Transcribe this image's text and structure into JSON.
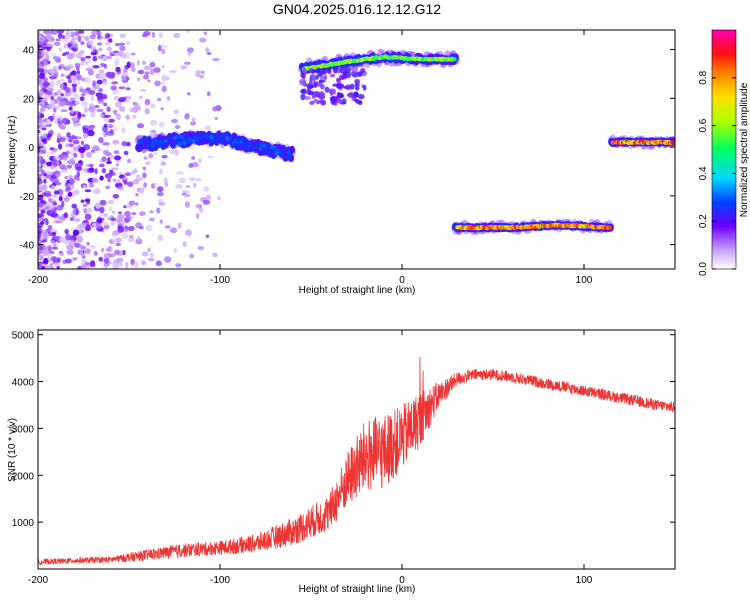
{
  "chart_data": [
    {
      "type": "heatmap",
      "title": "GN04.2025.016.12.12.G12",
      "xlabel": "Height of straight line (km)",
      "ylabel": "Frequency (Hz)",
      "xlim": [
        -200,
        150
      ],
      "ylim": [
        -50,
        48
      ],
      "x_ticks": [
        -200,
        -100,
        0,
        100
      ],
      "y_ticks": [
        -40,
        -20,
        0,
        20,
        40
      ],
      "colorbar": {
        "label": "Normalized spectral amplitude",
        "range": [
          0,
          1
        ],
        "ticks": [
          0.0,
          0.2,
          0.4,
          0.6,
          0.8
        ]
      },
      "features": [
        {
          "name": "noise-field",
          "x_range": [
            -200,
            -105
          ],
          "freq_range": [
            -50,
            48
          ],
          "amplitude": 0.12
        },
        {
          "name": "center-band",
          "x": [
            -145,
            -120,
            -100,
            -80,
            -60
          ],
          "freq": [
            1,
            3,
            4,
            0,
            -3
          ],
          "amplitude": 0.3
        },
        {
          "name": "upper-band",
          "x": [
            -55,
            -30,
            -10,
            10,
            30
          ],
          "freq": [
            32,
            35,
            37,
            36,
            36
          ],
          "amplitude": 0.65
        },
        {
          "name": "lower-band",
          "x": [
            29,
            60,
            85,
            115
          ],
          "freq": [
            -33,
            -33,
            -32,
            -33
          ],
          "amplitude": 0.9
        },
        {
          "name": "right-band",
          "x": [
            115,
            150
          ],
          "freq": [
            2,
            2
          ],
          "amplitude": 0.92
        }
      ]
    },
    {
      "type": "line",
      "xlabel": "Height of straight line (km)",
      "ylabel": "SNR (10 * v/v)",
      "xlim": [
        -200,
        150
      ],
      "ylim": [
        0,
        5100
      ],
      "x_ticks": [
        -200,
        -100,
        0,
        100
      ],
      "y_ticks": [
        1000,
        2000,
        3000,
        4000,
        5000
      ],
      "color": "#ee3333",
      "series": [
        {
          "name": "SNR",
          "x": [
            -200,
            -180,
            -160,
            -140,
            -120,
            -100,
            -80,
            -60,
            -40,
            -30,
            -20,
            -10,
            0,
            10,
            20,
            30,
            40,
            50,
            60,
            80,
            100,
            120,
            140,
            150
          ],
          "y": [
            150,
            180,
            200,
            300,
            400,
            450,
            550,
            800,
            1200,
            1900,
            2400,
            2500,
            2800,
            3200,
            3700,
            4050,
            4150,
            4150,
            4100,
            3950,
            3800,
            3650,
            3500,
            3450
          ],
          "spread": [
            60,
            60,
            70,
            120,
            150,
            150,
            200,
            300,
            400,
            600,
            800,
            800,
            700,
            600,
            300,
            150,
            120,
            120,
            120,
            120,
            120,
            120,
            120,
            120
          ]
        }
      ]
    }
  ]
}
